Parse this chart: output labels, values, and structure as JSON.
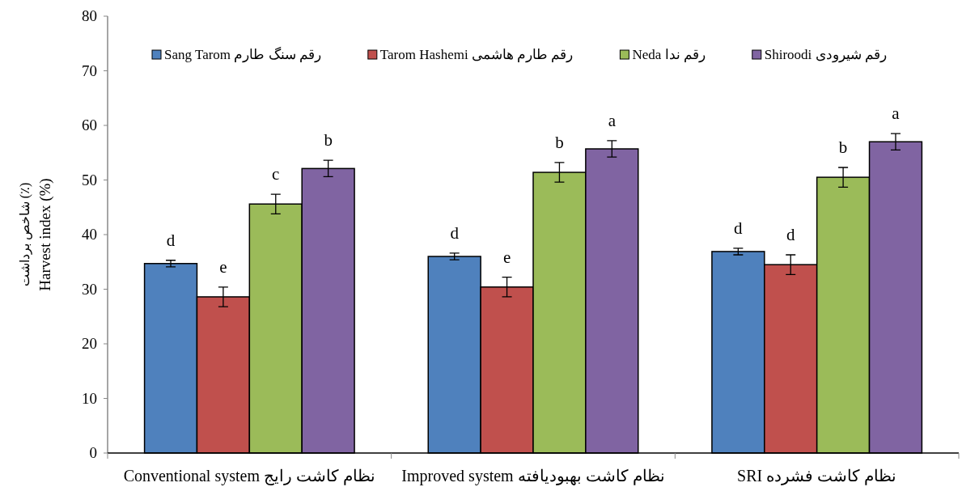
{
  "chart_data": {
    "type": "bar",
    "ylabel": "شاخص برداشت (٪)\nHarvest index (%)",
    "categories": [
      "Conventional system نظام کاشت رایج",
      "Improved system نظام کاشت بهبودیافته",
      "SRI نظام کاشت فشرده"
    ],
    "series": [
      {
        "name": "Sang Tarom رقم سنگ طارم",
        "color": "#4f81bd",
        "values": [
          34.7,
          36.0,
          36.9
        ],
        "errors": [
          0.6,
          0.6,
          0.6
        ],
        "value_labels": [
          "d",
          "d",
          "d"
        ]
      },
      {
        "name": "Tarom Hashemi رقم طارم هاشمی",
        "color": "#c0504d",
        "values": [
          28.6,
          30.4,
          34.5
        ],
        "errors": [
          1.8,
          1.8,
          1.8
        ],
        "value_labels": [
          "e",
          "e",
          "d"
        ]
      },
      {
        "name": "Neda رقم ندا",
        "color": "#9bbb59",
        "values": [
          45.6,
          51.4,
          50.5
        ],
        "errors": [
          1.8,
          1.8,
          1.8
        ],
        "value_labels": [
          "c",
          "b",
          "b"
        ]
      },
      {
        "name": "Shiroodi رقم شیرودی",
        "color": "#8064a2",
        "values": [
          52.1,
          55.7,
          57.0
        ],
        "errors": [
          1.5,
          1.5,
          1.5
        ],
        "value_labels": [
          "b",
          "a",
          "a"
        ]
      }
    ],
    "ylim": [
      0,
      80
    ],
    "yticks": [
      0,
      10,
      20,
      30,
      40,
      50,
      60,
      70,
      80
    ],
    "grid": false,
    "legend": "top"
  }
}
